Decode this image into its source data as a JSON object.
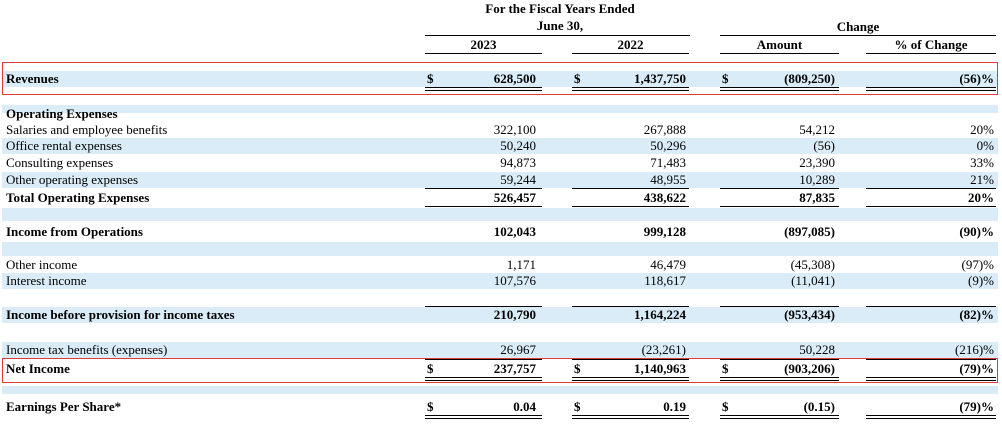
{
  "header": {
    "period_line1": "For the Fiscal Years Ended",
    "period_line2": "June 30,",
    "change": "Change",
    "col_2023": "2023",
    "col_2022": "2022",
    "col_amount": "Amount",
    "col_pct": "% of Change"
  },
  "currency_symbol": "$",
  "rows": {
    "revenues": {
      "label": "Revenues",
      "v2023": "628,500",
      "v2022": "1,437,750",
      "amount": "(809,250)",
      "pct": "(56)%"
    },
    "opex_header": {
      "label": "Operating Expenses"
    },
    "salaries": {
      "label": "Salaries and employee benefits",
      "v2023": "322,100",
      "v2022": "267,888",
      "amount": "54,212",
      "pct": "20%"
    },
    "office": {
      "label": "Office rental expenses",
      "v2023": "50,240",
      "v2022": "50,296",
      "amount": "(56)",
      "pct": "0%"
    },
    "consulting": {
      "label": "Consulting expenses",
      "v2023": "94,873",
      "v2022": "71,483",
      "amount": "23,390",
      "pct": "33%"
    },
    "other_opex": {
      "label": "Other operating expenses",
      "v2023": "59,244",
      "v2022": "48,955",
      "amount": "10,289",
      "pct": "21%"
    },
    "total_opex": {
      "label": "Total Operating Expenses",
      "v2023": "526,457",
      "v2022": "438,622",
      "amount": "87,835",
      "pct": "20%"
    },
    "income_ops": {
      "label": "Income from Operations",
      "v2023": "102,043",
      "v2022": "999,128",
      "amount": "(897,085)",
      "pct": "(90)%"
    },
    "other_income": {
      "label": "Other income",
      "v2023": "1,171",
      "v2022": "46,479",
      "amount": "(45,308)",
      "pct": "(97)%"
    },
    "interest_income": {
      "label": "Interest income",
      "v2023": "107,576",
      "v2022": "118,617",
      "amount": "(11,041)",
      "pct": "(9)%"
    },
    "pretax": {
      "label": "Income before provision for income taxes",
      "v2023": "210,790",
      "v2022": "1,164,224",
      "amount": "(953,434)",
      "pct": "(82)%"
    },
    "tax": {
      "label": "Income tax benefits (expenses)",
      "v2023": "26,967",
      "v2022": "(23,261)",
      "amount": "50,228",
      "pct": "(216)%"
    },
    "net_income": {
      "label": "Net Income",
      "v2023": "237,757",
      "v2022": "1,140,963",
      "amount": "(903,206)",
      "pct": "(79)%"
    },
    "eps": {
      "label": "Earnings Per Share*",
      "v2023": "0.04",
      "v2022": "0.19",
      "amount": "(0.15)",
      "pct": "(79)%"
    }
  },
  "colors": {
    "row_shade": "#d9ecf8",
    "highlight": "#e03a3a"
  }
}
